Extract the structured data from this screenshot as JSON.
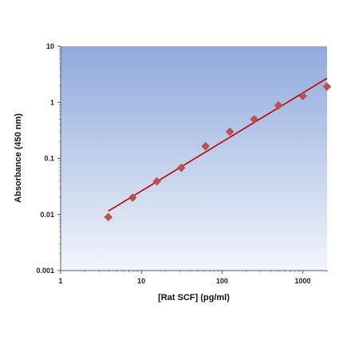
{
  "chart_data": {
    "type": "scatter",
    "title": "",
    "xlabel": "[Rat SCF] (pg/ml)",
    "ylabel": "Absorbance (450 nm)",
    "x_scale": "log",
    "y_scale": "log",
    "xlim": [
      1,
      2000
    ],
    "ylim": [
      0.001,
      10
    ],
    "x_ticks": [
      1,
      10,
      100,
      1000
    ],
    "x_tick_labels": [
      "1",
      "10",
      "100",
      "1000"
    ],
    "y_ticks": [
      0.001,
      0.01,
      0.1,
      1,
      10
    ],
    "y_tick_labels": [
      "0.001",
      "0.01",
      "0.1",
      "1",
      "10"
    ],
    "grid": false,
    "legend": "none",
    "series": [
      {
        "marker": "diamond",
        "color": "#c0504d",
        "x": [
          3.9,
          7.8,
          15.6,
          31.25,
          62.5,
          125,
          250,
          500,
          1000,
          2000
        ],
        "y": [
          0.009,
          0.02,
          0.039,
          0.068,
          0.165,
          0.3,
          0.5,
          0.88,
          1.3,
          1.9
        ]
      }
    ],
    "fit_line": {
      "color": "#c00000",
      "x": [
        3.9,
        2000
      ],
      "y": [
        0.0115,
        2.7
      ]
    },
    "colors": {
      "plot_bg_top": "#8faadc",
      "plot_bg_bottom": "#f2f5fb",
      "marker": "#c0504d",
      "fit_line": "#c00000"
    }
  }
}
